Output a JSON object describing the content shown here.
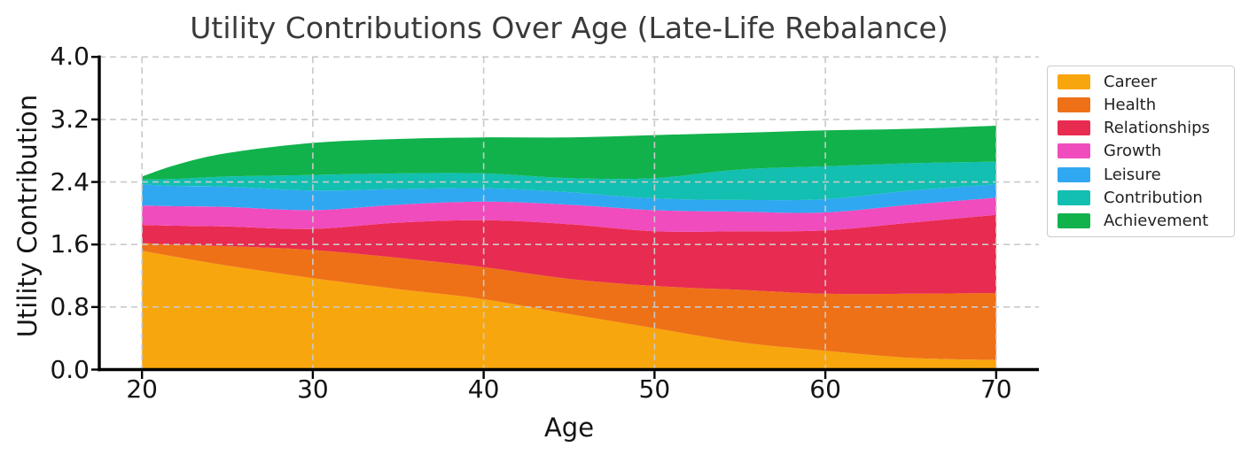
{
  "chart_data": {
    "type": "area",
    "stacked": true,
    "title": "Utility Contributions Over Age (Late-Life Rebalance)",
    "xlabel": "Age",
    "ylabel": "Utility Contribution",
    "x": [
      20,
      22,
      25,
      30,
      35,
      40,
      45,
      50,
      55,
      60,
      65,
      70
    ],
    "series": [
      {
        "name": "Career",
        "color": "#F8A60D",
        "values": [
          1.52,
          1.44,
          1.33,
          1.17,
          1.03,
          0.9,
          0.71,
          0.53,
          0.35,
          0.24,
          0.15,
          0.12
        ]
      },
      {
        "name": "Health",
        "color": "#EE7117",
        "values": [
          0.1,
          0.16,
          0.25,
          0.36,
          0.4,
          0.41,
          0.45,
          0.54,
          0.67,
          0.73,
          0.82,
          0.86
        ]
      },
      {
        "name": "Relationships",
        "color": "#E82B50",
        "values": [
          0.23,
          0.24,
          0.25,
          0.27,
          0.45,
          0.6,
          0.7,
          0.7,
          0.75,
          0.81,
          0.91,
          1.0
        ]
      },
      {
        "name": "Growth",
        "color": "#F04CBD",
        "values": [
          0.25,
          0.25,
          0.25,
          0.24,
          0.23,
          0.24,
          0.25,
          0.27,
          0.25,
          0.23,
          0.23,
          0.22
        ]
      },
      {
        "name": "Leisure",
        "color": "#2FA8F1",
        "values": [
          0.27,
          0.26,
          0.26,
          0.25,
          0.2,
          0.17,
          0.16,
          0.15,
          0.15,
          0.17,
          0.18,
          0.17
        ]
      },
      {
        "name": "Contribution",
        "color": "#12BFB0",
        "values": [
          0.06,
          0.09,
          0.13,
          0.2,
          0.2,
          0.19,
          0.18,
          0.26,
          0.39,
          0.42,
          0.35,
          0.29
        ]
      },
      {
        "name": "Achievement",
        "color": "#11B24C",
        "values": [
          0.04,
          0.18,
          0.3,
          0.41,
          0.44,
          0.46,
          0.52,
          0.55,
          0.47,
          0.46,
          0.44,
          0.46
        ]
      }
    ],
    "xticks": [
      20,
      30,
      40,
      50,
      60,
      70
    ],
    "yticks": [
      0,
      0.8,
      1.6,
      2.4,
      3.2,
      4.0
    ],
    "xtick_labels": [
      "20",
      "30",
      "40",
      "50",
      "60",
      "70"
    ],
    "ytick_labels": [
      "0.0",
      "0.8",
      "1.6",
      "2.4",
      "3.2",
      "4.0"
    ],
    "xlim": [
      17.5,
      72.5
    ],
    "ylim": [
      0,
      4.0
    ],
    "grid": {
      "on": true,
      "style": "dashed",
      "color": "#C9C9C9"
    },
    "legend": {
      "position": "outside upper right"
    },
    "title_color": "#3A3A3A",
    "spine_color": "#000000"
  }
}
